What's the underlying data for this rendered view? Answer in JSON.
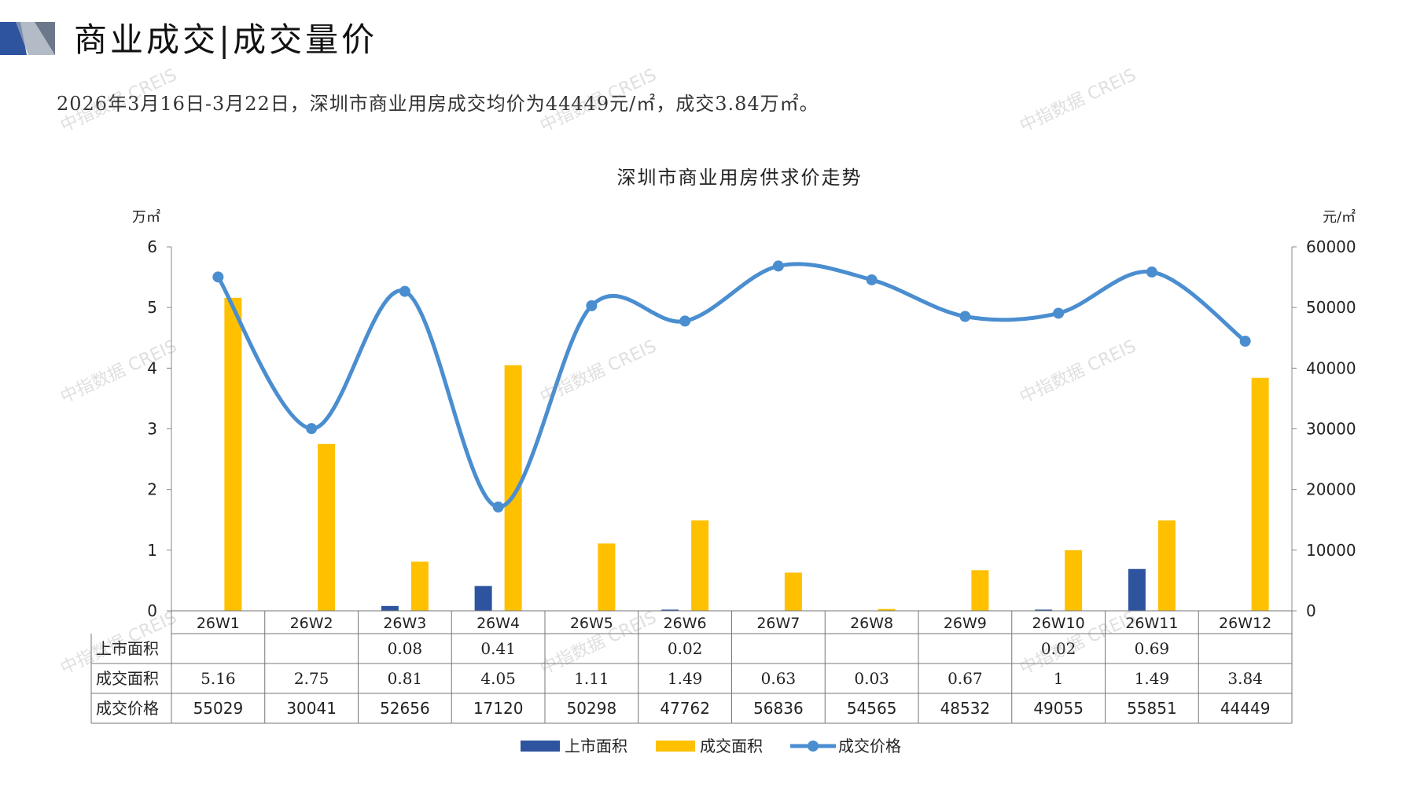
{
  "header": {
    "title": "商业成交|成交量价"
  },
  "summary": "2026年3月16日-3月22日，深圳市商业用房成交均价为44449元/㎡，成交3.84万㎡。",
  "watermark": "中指数据 CREIS",
  "colors": {
    "supply": "#2e54a0",
    "deal_area": "#ffc000",
    "price": "#4a8ed0",
    "logo_blue": "#2e54a0",
    "logo_gray": "#9aa4b4"
  },
  "chart_data": {
    "type": "bar",
    "title": "深圳市商业用房供求价走势",
    "left_axis_unit": "万㎡",
    "right_axis_unit": "元/㎡",
    "categories": [
      "26W1",
      "26W2",
      "26W3",
      "26W4",
      "26W5",
      "26W6",
      "26W7",
      "26W8",
      "26W9",
      "26W10",
      "26W11",
      "26W12"
    ],
    "ylim_left": [
      0,
      6
    ],
    "yticks_left": [
      "0",
      "1",
      "2",
      "3",
      "4",
      "5",
      "6"
    ],
    "ylim_right": [
      0,
      60000
    ],
    "yticks_right": [
      "0",
      "10000",
      "20000",
      "30000",
      "40000",
      "50000",
      "60000"
    ],
    "series": [
      {
        "name": "上市面积",
        "kind": "bar",
        "axis": "left",
        "values": [
          null,
          null,
          0.08,
          0.41,
          null,
          0.02,
          null,
          null,
          null,
          0.02,
          0.69,
          null
        ],
        "labels": [
          "",
          "",
          "0.08",
          "0.41",
          "",
          "0.02",
          "",
          "",
          "",
          "0.02",
          "0.69",
          ""
        ]
      },
      {
        "name": "成交面积",
        "kind": "bar",
        "axis": "left",
        "values": [
          5.16,
          2.75,
          0.81,
          4.05,
          1.11,
          1.49,
          0.63,
          0.03,
          0.67,
          1,
          1.49,
          3.84
        ],
        "labels": [
          "5.16",
          "2.75",
          "0.81",
          "4.05",
          "1.11",
          "1.49",
          "0.63",
          "0.03",
          "0.67",
          "1",
          "1.49",
          "3.84"
        ]
      },
      {
        "name": "成交价格",
        "kind": "line",
        "axis": "right",
        "values": [
          55029,
          30041,
          52656,
          17120,
          50298,
          47762,
          56836,
          54565,
          48532,
          49055,
          55851,
          44449
        ],
        "labels": [
          "55029",
          "30041",
          "52656",
          "17120",
          "50298",
          "47762",
          "56836",
          "54565",
          "48532",
          "49055",
          "55851",
          "44449"
        ]
      }
    ],
    "legend_position": "bottom",
    "grid": false
  }
}
